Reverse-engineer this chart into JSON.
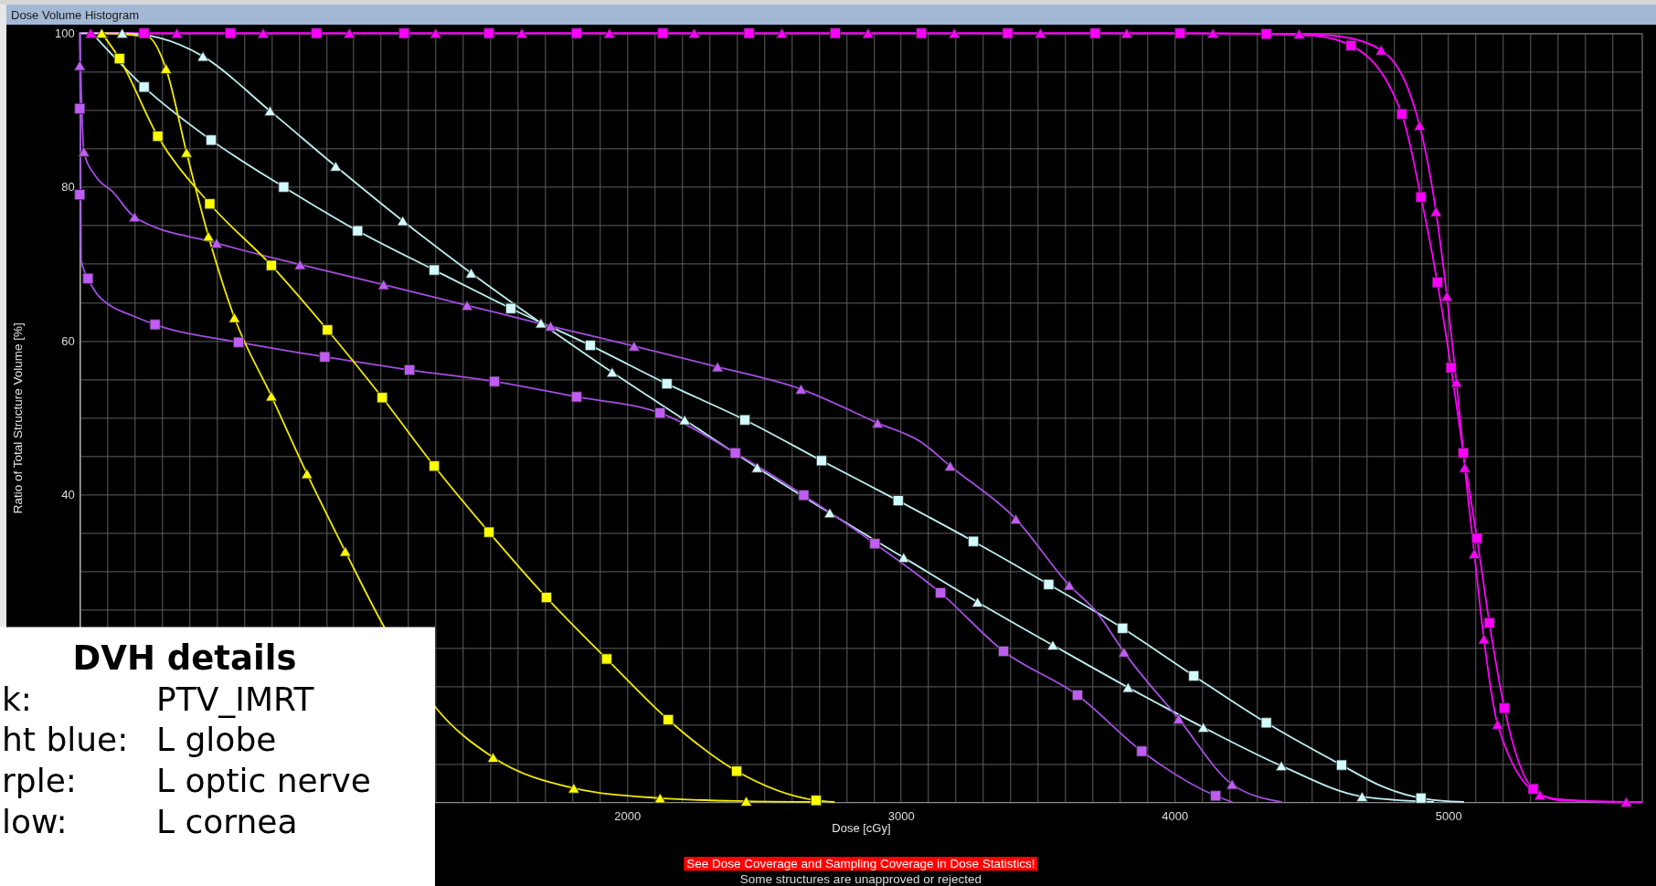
{
  "chart_data": {
    "type": "line",
    "title": "Dose Volume Histogram",
    "xlabel": "Dose [cGy]",
    "ylabel": "Ratio of Total Structure Volume [%]",
    "xlim": [
      0,
      5707
    ],
    "ylim": [
      0,
      100
    ],
    "xticks": [
      {
        "value": 0,
        "label": null
      },
      {
        "value": 100,
        "label": null
      },
      {
        "value": 200,
        "label": null
      },
      {
        "value": 300,
        "label": null
      },
      {
        "value": 400,
        "label": null
      },
      {
        "value": 500,
        "label": null
      },
      {
        "value": 600,
        "label": null
      },
      {
        "value": 700,
        "label": null
      },
      {
        "value": 800,
        "label": null
      },
      {
        "value": 900,
        "label": null
      },
      {
        "value": 1000,
        "label": null
      },
      {
        "value": 1100,
        "label": null
      },
      {
        "value": 1200,
        "label": null
      },
      {
        "value": 1300,
        "label": null
      },
      {
        "value": 1400,
        "label": null
      },
      {
        "value": 1500,
        "label": null
      },
      {
        "value": 1600,
        "label": null
      },
      {
        "value": 1700,
        "label": null
      },
      {
        "value": 1800,
        "label": null
      },
      {
        "value": 1900,
        "label": null
      },
      2000,
      {
        "value": 2100,
        "label": null
      },
      {
        "value": 2200,
        "label": null
      },
      {
        "value": 2300,
        "label": null
      },
      {
        "value": 2400,
        "label": null
      },
      {
        "value": 2500,
        "label": null
      },
      {
        "value": 2600,
        "label": null
      },
      {
        "value": 2700,
        "label": null
      },
      {
        "value": 2800,
        "label": null
      },
      {
        "value": 2900,
        "label": null
      },
      3000,
      {
        "value": 3100,
        "label": null
      },
      {
        "value": 3200,
        "label": null
      },
      {
        "value": 3300,
        "label": null
      },
      {
        "value": 3400,
        "label": null
      },
      {
        "value": 3500,
        "label": null
      },
      {
        "value": 3600,
        "label": null
      },
      {
        "value": 3700,
        "label": null
      },
      {
        "value": 3800,
        "label": null
      },
      {
        "value": 3900,
        "label": null
      },
      4000,
      {
        "value": 4100,
        "label": null
      },
      {
        "value": 4200,
        "label": null
      },
      {
        "value": 4300,
        "label": null
      },
      {
        "value": 4400,
        "label": null
      },
      {
        "value": 4500,
        "label": null
      },
      {
        "value": 4600,
        "label": null
      },
      {
        "value": 4700,
        "label": null
      },
      {
        "value": 4800,
        "label": null
      },
      {
        "value": 4900,
        "label": null
      },
      5000,
      {
        "value": 5100,
        "label": null
      },
      {
        "value": 5200,
        "label": null
      },
      {
        "value": 5300,
        "label": null
      },
      {
        "value": 5400,
        "label": null
      },
      {
        "value": 5500,
        "label": null
      },
      {
        "value": 5600,
        "label": null
      }
    ],
    "yticks": [
      {
        "value": 0,
        "label": null
      },
      {
        "value": 5,
        "label": null
      },
      {
        "value": 10,
        "label": null
      },
      {
        "value": 15,
        "label": null
      },
      {
        "value": 20,
        "label": null
      },
      {
        "value": 25,
        "label": null
      },
      {
        "value": 30,
        "label": null
      },
      {
        "value": 35,
        "label": null
      },
      40,
      {
        "value": 45,
        "label": null
      },
      {
        "value": 50,
        "label": null
      },
      {
        "value": 55,
        "label": null
      },
      60,
      {
        "value": 65,
        "label": null
      },
      {
        "value": 70,
        "label": null
      },
      {
        "value": 75,
        "label": null
      },
      80,
      {
        "value": 85,
        "label": null
      },
      {
        "value": 90,
        "label": null
      },
      {
        "value": 95,
        "label": null
      },
      100
    ],
    "grid": true,
    "series": [
      {
        "color": "#ff00ff",
        "x": [
          0,
          4020,
          4335,
          4500,
          4645,
          4830,
          4900,
          4960,
          5010,
          5055,
          5105,
          5150,
          5205,
          5310,
          5410,
          5707
        ],
        "values": [
          100,
          100,
          99.9,
          99.7,
          98.4,
          89.5,
          78.7,
          67.6,
          56.5,
          45.4,
          34.3,
          23.3,
          12.2,
          1.7,
          0.2,
          0
        ]
      },
      {
        "color": "#ff00ff",
        "x": [
          40,
          4140,
          4455,
          4600,
          4755,
          4895,
          4955,
          4995,
          5030,
          5060,
          5095,
          5130,
          5180,
          5335,
          5420,
          5650,
          5707
        ],
        "values": [
          100,
          100,
          99.9,
          99.6,
          97.8,
          88.0,
          76.8,
          65.8,
          54.6,
          43.5,
          32.3,
          21.2,
          10.1,
          0.9,
          0.3,
          0,
          0
        ]
      },
      {
        "color": "#bdeeee",
        "x": [
          45,
          235,
          480,
          745,
          1015,
          1295,
          1575,
          1865,
          2145,
          2430,
          2710,
          2990,
          3265,
          3540,
          3810,
          4070,
          4335,
          4610,
          4760,
          4900,
          5055
        ],
        "values": [
          100,
          93.0,
          86.1,
          80.0,
          74.3,
          69.2,
          64.2,
          59.4,
          54.4,
          49.7,
          44.4,
          39.2,
          33.9,
          28.3,
          22.6,
          16.4,
          10.3,
          4.8,
          2.0,
          0.5,
          0
        ]
      },
      {
        "color": "#bdeeee",
        "x": [
          0,
          155,
          290,
          450,
          695,
          935,
          1180,
          1430,
          1685,
          1945,
          2210,
          2475,
          2740,
          3010,
          3280,
          3555,
          3830,
          4105,
          4390,
          4685,
          4945
        ],
        "values": [
          100,
          100,
          99.4,
          97.0,
          89.9,
          82.7,
          75.6,
          68.8,
          62.3,
          55.9,
          49.7,
          43.5,
          37.6,
          31.8,
          26.0,
          20.4,
          14.9,
          9.7,
          4.7,
          0.7,
          0
        ]
      },
      {
        "color": "#a24ee0",
        "x": [
          0,
          5,
          30,
          60,
          110,
          190,
          275,
          580,
          895,
          1205,
          1515,
          1815,
          2120,
          2395,
          2645,
          2905,
          3145,
          3375,
          3645,
          3880,
          4150,
          4210
        ],
        "values": [
          100,
          70.5,
          68.1,
          66.2,
          64.6,
          63.3,
          62.1,
          59.8,
          57.9,
          56.2,
          54.7,
          52.7,
          50.6,
          45.4,
          39.9,
          33.6,
          27.2,
          19.6,
          13.9,
          6.6,
          0.8,
          0
        ]
      },
      {
        "color": "#a24ee0",
        "x": [
          0,
          15,
          60,
          120,
          200,
          500,
          805,
          1110,
          1415,
          1720,
          2025,
          2330,
          2635,
          2915,
          3075,
          3180,
          3420,
          3615,
          3715,
          3815,
          4015,
          4210,
          4390
        ],
        "values": [
          100,
          84.6,
          81.3,
          79.4,
          76.1,
          72.7,
          69.9,
          67.3,
          64.6,
          61.9,
          59.3,
          56.6,
          53.7,
          49.3,
          46.8,
          43.7,
          36.8,
          28.2,
          24.7,
          19.5,
          10.8,
          2.3,
          0
        ]
      },
      {
        "color": "#f0ea00",
        "x": [
          80,
          145,
          285,
          475,
          700,
          905,
          1105,
          1295,
          1495,
          1705,
          1925,
          2150,
          2400,
          2690,
          2755
        ],
        "values": [
          100,
          96.7,
          86.6,
          77.8,
          69.8,
          61.4,
          52.6,
          43.7,
          35.1,
          26.6,
          18.6,
          10.7,
          4.0,
          0.2,
          0
        ]
      },
      {
        "color": "#f0ea00",
        "x": [
          80,
          250,
          315,
          390,
          470,
          565,
          700,
          830,
          970,
          1110,
          1300,
          1510,
          1805,
          2120,
          2435,
          2700
        ],
        "values": [
          100,
          99.5,
          95.4,
          84.5,
          73.6,
          63.0,
          52.8,
          42.7,
          32.6,
          22.9,
          12.3,
          5.8,
          1.8,
          0.5,
          0.1,
          0
        ]
      },
      {
        "type": "scatter",
        "marker": "square",
        "color": "#ff00ff",
        "x": [
          235,
          550,
          865,
          1185,
          1495,
          1815,
          2130,
          2445,
          2760,
          3075,
          3390,
          3710,
          4020,
          4335,
          4645,
          4830,
          4900,
          4960,
          5010,
          5055,
          5105,
          5150,
          5205,
          5310
        ],
        "values": [
          100,
          100,
          100,
          100,
          100,
          100,
          100,
          100,
          100,
          100,
          100,
          100,
          100,
          99.9,
          98.4,
          89.5,
          78.7,
          67.6,
          56.5,
          45.4,
          34.3,
          23.3,
          12.2,
          1.7
        ]
      },
      {
        "type": "scatter",
        "marker": "triangle",
        "color": "#ff00ff",
        "x": [
          40,
          355,
          670,
          985,
          1300,
          1615,
          1935,
          2245,
          2565,
          2880,
          3195,
          3510,
          3825,
          4140,
          4455,
          4755,
          4895,
          4955,
          4995,
          5030,
          5060,
          5095,
          5130,
          5180,
          5335,
          5650
        ],
        "values": [
          100,
          100,
          100,
          100,
          100,
          100,
          100,
          100,
          100,
          100,
          100,
          100,
          100,
          100,
          99.9,
          97.8,
          88.0,
          76.8,
          65.8,
          54.6,
          43.5,
          32.3,
          21.2,
          10.1,
          0.9,
          0
        ]
      },
      {
        "type": "scatter",
        "marker": "square",
        "color": "#d2fbfb",
        "x": [
          235,
          480,
          745,
          1015,
          1295,
          1575,
          1865,
          2145,
          2430,
          2710,
          2990,
          3265,
          3540,
          3810,
          4070,
          4335,
          4610,
          4900
        ],
        "values": [
          93.0,
          86.1,
          80.0,
          74.3,
          69.2,
          64.2,
          59.4,
          54.4,
          49.7,
          44.4,
          39.2,
          33.9,
          28.3,
          22.6,
          16.4,
          10.3,
          4.8,
          0.5
        ]
      },
      {
        "type": "scatter",
        "marker": "triangle",
        "color": "#d2fbfb",
        "x": [
          155,
          450,
          695,
          935,
          1180,
          1430,
          1685,
          1945,
          2210,
          2475,
          2740,
          3010,
          3280,
          3555,
          3830,
          4105,
          4390,
          4685
        ],
        "values": [
          100,
          97.0,
          89.9,
          82.7,
          75.6,
          68.8,
          62.3,
          55.9,
          49.7,
          43.5,
          37.6,
          31.8,
          26.0,
          20.4,
          14.9,
          9.7,
          4.7,
          0.7
        ]
      },
      {
        "type": "scatter",
        "marker": "square",
        "color": "#bf5cf2",
        "x": [
          0,
          0,
          30,
          275,
          580,
          895,
          1205,
          1515,
          1815,
          2120,
          2395,
          2645,
          2905,
          3145,
          3375,
          3645,
          3880,
          4150
        ],
        "values": [
          90.2,
          79.0,
          68.1,
          62.1,
          59.8,
          57.9,
          56.2,
          54.7,
          52.7,
          50.6,
          45.4,
          39.9,
          33.6,
          27.2,
          19.6,
          13.9,
          6.6,
          0.8
        ]
      },
      {
        "type": "scatter",
        "marker": "triangle",
        "color": "#bf5cf2",
        "x": [
          0,
          15,
          200,
          500,
          805,
          1110,
          1415,
          1720,
          2025,
          2330,
          2635,
          2915,
          3180,
          3420,
          3615,
          3815,
          4015,
          4210
        ],
        "values": [
          95.8,
          84.6,
          76.1,
          72.7,
          69.9,
          67.3,
          64.6,
          61.9,
          59.3,
          56.6,
          53.7,
          49.3,
          43.7,
          36.8,
          28.2,
          19.5,
          10.8,
          2.3
        ]
      },
      {
        "type": "scatter",
        "marker": "square",
        "color": "#ffff00",
        "x": [
          145,
          285,
          475,
          700,
          905,
          1105,
          1295,
          1495,
          1705,
          1925,
          2150,
          2400,
          2690
        ],
        "values": [
          96.7,
          86.6,
          77.8,
          69.8,
          61.4,
          52.6,
          43.7,
          35.1,
          26.6,
          18.6,
          10.7,
          4.0,
          0.2
        ]
      },
      {
        "type": "scatter",
        "marker": "triangle",
        "color": "#ffff00",
        "x": [
          80,
          315,
          390,
          470,
          565,
          700,
          830,
          970,
          1510,
          1805,
          2120,
          2435
        ],
        "values": [
          100,
          95.4,
          84.5,
          73.6,
          63.0,
          52.8,
          42.7,
          32.6,
          5.8,
          1.8,
          0.5,
          0.1
        ]
      }
    ],
    "annotations": [
      "DVH details",
      "k:",
      "PTV_IMRT",
      "ht blue:",
      "L globe",
      "rple:",
      "L optic nerve",
      "low:",
      "L cornea",
      "See Dose Coverage and Sampling Coverage in Dose Statistics!",
      "Some structures are unapproved or rejected"
    ]
  }
}
